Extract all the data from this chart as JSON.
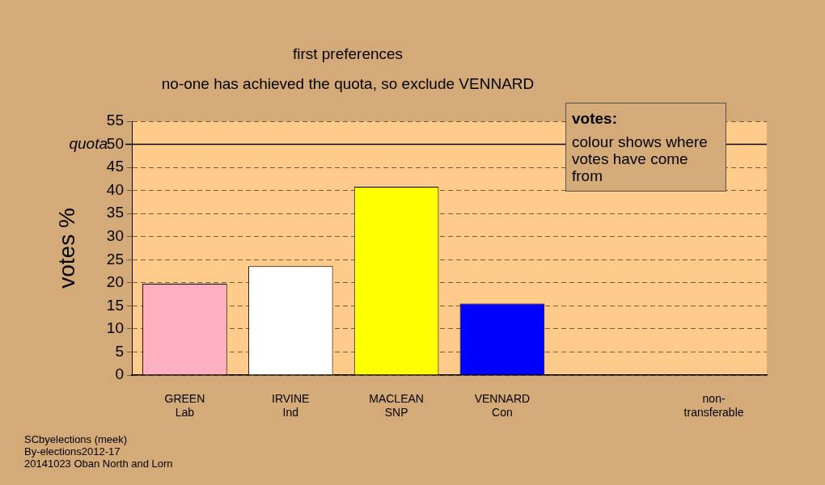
{
  "chart_data": {
    "type": "bar",
    "title": "first preferences",
    "subtitle": "no-one has achieved the quota, so exclude VENNARD",
    "ylabel": "votes %",
    "categories": [
      "GREEN Lab",
      "IRVINE Ind",
      "MACLEAN SNP",
      "VENNARD Con",
      null,
      "non-transferable"
    ],
    "values": [
      19.8,
      23.6,
      40.8,
      15.5,
      null,
      null
    ],
    "colors": [
      "#ffb0c0",
      "#ffffff",
      "#ffff00",
      "#0000ff",
      "#808080",
      "#808080"
    ],
    "ylim": [
      0,
      55
    ],
    "yticks": [
      0,
      5,
      10,
      15,
      20,
      25,
      30,
      35,
      40,
      45,
      50,
      55
    ],
    "grid": "y",
    "legend": false,
    "ref_lines": [
      {
        "axis": "y",
        "value": 50,
        "label": "quota",
        "color": "#000000",
        "line_style": "solid"
      }
    ],
    "annotations": [
      "votes:",
      "colour shows where votes have come from",
      "SCbyelections (meek)",
      "By-elections2012-17",
      "20141023 Oban North and Lorn"
    ]
  }
}
